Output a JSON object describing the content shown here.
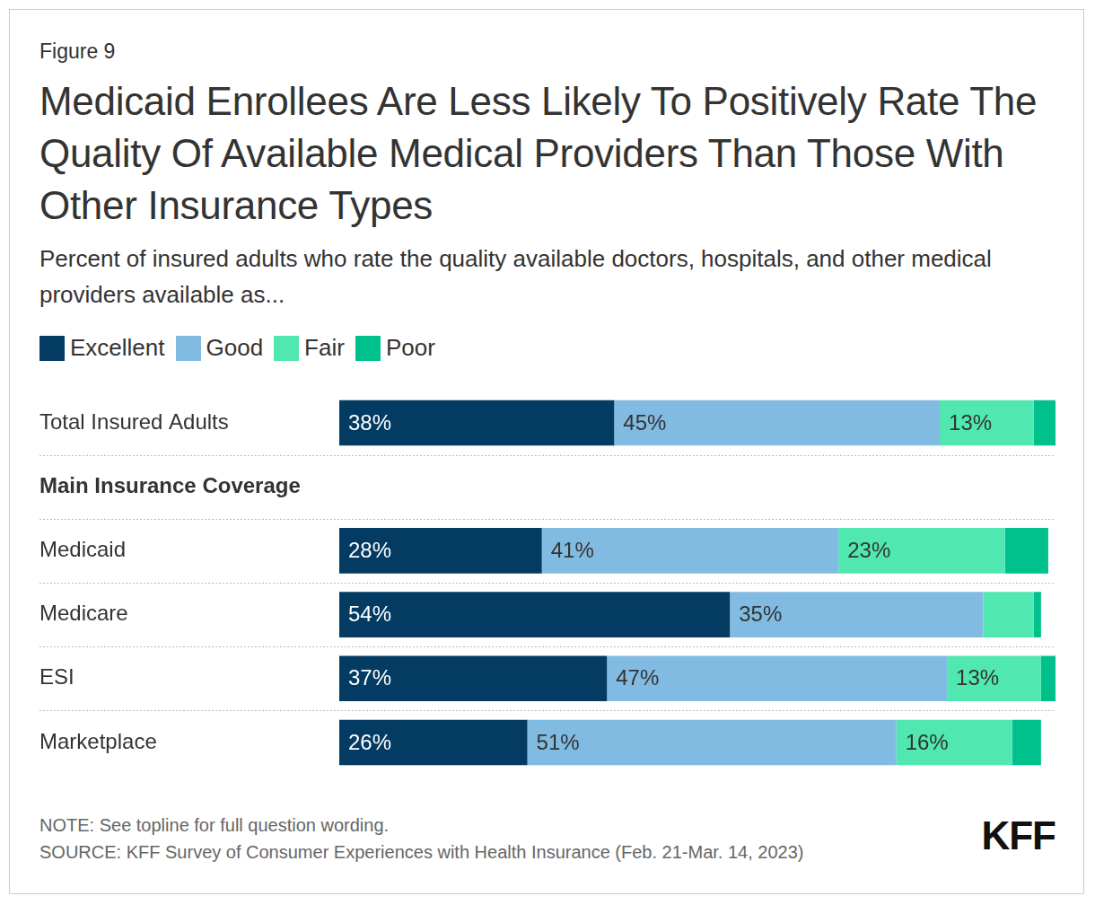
{
  "chart_data": {
    "type": "bar",
    "figure_label": "Figure 9",
    "title": "Medicaid Enrollees Are Less Likely To Positively Rate The Quality Of Available Medical Providers Than Those With Other Insurance Types",
    "subtitle": "Percent of insured adults who rate the quality available doctors, hospitals, and other medical providers available as...",
    "note": "NOTE: See topline for full question wording.",
    "source": "SOURCE: KFF Survey of Consumer Experiences with Health Insurance (Feb. 21-Mar. 14, 2023)",
    "logo": "KFF",
    "orientation": "horizontal",
    "stacked": true,
    "data_labels": true,
    "tick_labels": "y",
    "grid": true,
    "legend": "top left",
    "categories": [
      "Total Insured Adults",
      "Main Insurance Coverage",
      "Medicaid",
      "Medicare",
      "ESI",
      "Marketplace"
    ],
    "series": [
      {
        "name": "Excellent",
        "color": "#033b63",
        "values": [
          38,
          null,
          28,
          54,
          37,
          26
        ],
        "value_labels": [
          "38%",
          null,
          "28%",
          "54%",
          "37%",
          "26%"
        ]
      },
      {
        "name": "Good",
        "color": "#82bbe2",
        "values": [
          45,
          null,
          41,
          35,
          47,
          51
        ],
        "value_labels": [
          "45%",
          null,
          "41%",
          "35%",
          "47%",
          "51%"
        ]
      },
      {
        "name": "Fair",
        "color": "#50e8b0",
        "values": [
          13,
          null,
          23,
          7,
          13,
          16
        ],
        "value_labels": [
          "13%",
          null,
          "23%",
          null,
          "13%",
          "16%"
        ]
      },
      {
        "name": "Poor",
        "color": "#00c18c",
        "values": [
          3,
          null,
          6,
          1,
          2,
          4
        ],
        "value_labels": [
          null,
          null,
          null,
          null,
          null,
          null
        ]
      }
    ]
  }
}
